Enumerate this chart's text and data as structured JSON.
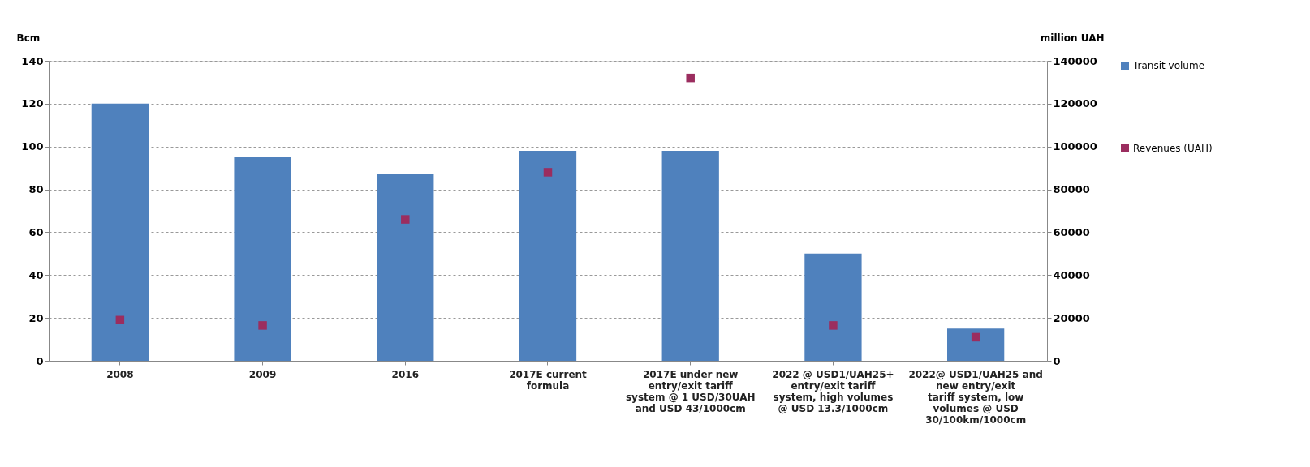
{
  "chart_data": {
    "type": "bar",
    "ylabel": "Bcm",
    "y2label": "million UAH",
    "categories": [
      "2008",
      "2009",
      "2016",
      "2017E current formula",
      "2017E under new entry/exit tariff system @ 1 USD/30UAH and USD 43/1000cm",
      "2022 @ USD1/UAH25+ entry/exit tariff system, high volumes @ USD 13.3/1000cm",
      "2022@ USD1/UAH25 and new entry/exit tariff system, low volumes @ USD 30/100km/1000cm"
    ],
    "series": [
      {
        "name": "Transit volume",
        "color": "#4f81bd",
        "values": [
          120,
          95,
          87,
          98,
          98,
          50,
          15
        ]
      },
      {
        "name": "Revenues (UAH)",
        "type": "scatter",
        "axis": "y2",
        "color": "#9b2d5f",
        "marker": "square",
        "values": [
          19000,
          16500,
          66000,
          88000,
          132000,
          16500,
          11000
        ]
      }
    ],
    "ylim": [
      0,
      140
    ],
    "yticks": [
      0,
      20,
      40,
      60,
      80,
      100,
      120,
      140
    ],
    "y2lim": [
      0,
      140000
    ],
    "y2ticks": [
      0,
      20000,
      40000,
      60000,
      80000,
      100000,
      120000,
      140000
    ],
    "grid": "y",
    "legend": "right"
  }
}
